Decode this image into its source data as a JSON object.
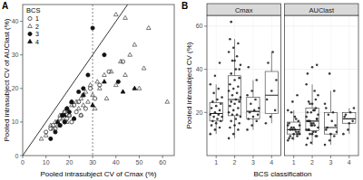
{
  "chart_data": [
    {
      "type": "scatter",
      "title": "A",
      "x_label": "Pooled intrasubject CV of Cmax (%)",
      "y_label": "Pooled intrasubject CV of AUClast (%)",
      "legend_title": "BCS",
      "legend": "top-left",
      "grid": false,
      "xlim": [
        0,
        65
      ],
      "ylim": [
        0,
        45
      ],
      "xticks": [
        0,
        10,
        20,
        30,
        40,
        50,
        60
      ],
      "yticks": [
        0,
        10,
        20,
        30,
        40
      ],
      "reference_lines": {
        "identity": {
          "x": [
            0,
            65
          ],
          "y": [
            0,
            65
          ]
        },
        "vertical": 30
      },
      "series": [
        {
          "name": "1",
          "marker": "open-circle",
          "color": "#333333",
          "x": [
            10,
            12,
            13,
            14,
            15,
            16,
            16,
            17,
            18,
            18,
            19,
            19,
            20,
            21,
            22,
            23,
            24,
            25,
            26,
            27,
            29,
            31,
            33,
            37,
            43
          ],
          "values": [
            7,
            8,
            9,
            8,
            10,
            11,
            9,
            12,
            10,
            13,
            11,
            14,
            12,
            10,
            15,
            13,
            16,
            12,
            18,
            14,
            20,
            17,
            21,
            25,
            28
          ]
        },
        {
          "name": "2",
          "marker": "open-triangle",
          "color": "#555555",
          "x": [
            8,
            10,
            12,
            13,
            14,
            15,
            16,
            17,
            18,
            19,
            19,
            20,
            21,
            22,
            23,
            24,
            25,
            25,
            26,
            27,
            28,
            29,
            30,
            31,
            32,
            33,
            35,
            36,
            38,
            40,
            42,
            44,
            46,
            48,
            50,
            52,
            54,
            44,
            40,
            62
          ],
          "values": [
            5,
            6,
            9,
            8,
            10,
            9,
            12,
            11,
            13,
            10,
            14,
            12,
            15,
            11,
            16,
            14,
            17,
            12,
            15,
            19,
            16,
            21,
            18,
            14,
            22,
            20,
            24,
            17,
            25,
            21,
            28,
            24,
            30,
            33,
            20,
            26,
            38,
            41,
            42,
            16
          ]
        },
        {
          "name": "3",
          "marker": "filled-circle",
          "color": "#111111",
          "x": [
            12,
            14,
            16,
            17,
            18,
            19,
            20,
            21,
            22,
            24,
            26,
            28,
            30,
            35,
            41
          ],
          "values": [
            5,
            7,
            9,
            12,
            10,
            14,
            13,
            16,
            11,
            19,
            20,
            24,
            38,
            30,
            22
          ]
        },
        {
          "name": "4",
          "marker": "filled-triangle",
          "color": "#111111",
          "x": [
            15,
            18,
            21,
            26,
            30,
            35,
            43,
            48
          ],
          "values": [
            10,
            12,
            16,
            18,
            15,
            22,
            19,
            20
          ]
        }
      ]
    },
    {
      "type": "box",
      "title": "B",
      "x_label": "BCS classification",
      "y_label": "Pooled intrasubject CV (%)",
      "categories": [
        "1",
        "2",
        "3",
        "4"
      ],
      "grid": true,
      "ylim": [
        0,
        65
      ],
      "yticks": [
        20,
        40,
        60
      ],
      "facets": [
        {
          "title": "Cmax",
          "boxes": {
            "whisker_low": [
              10,
              8,
              12,
              15
            ],
            "q1": [
              16,
              18.5,
              17,
              19.5
            ],
            "median": [
              19.5,
              26,
              20.5,
              28
            ],
            "q3": [
              24.5,
              37,
              27,
              39
            ],
            "whisker_high": [
              33,
              54,
              35,
              48
            ]
          },
          "points": [
            [
              10,
              12,
              13,
              14,
              15,
              16,
              16,
              17,
              18,
              18,
              19,
              19,
              20,
              21,
              22,
              23,
              24,
              25,
              26,
              27,
              29,
              31,
              33,
              37,
              43
            ],
            [
              8,
              10,
              12,
              13,
              14,
              15,
              16,
              17,
              18,
              19,
              19,
              20,
              21,
              22,
              23,
              24,
              25,
              25,
              26,
              27,
              28,
              29,
              30,
              31,
              32,
              33,
              35,
              36,
              38,
              40,
              42,
              44,
              46,
              48,
              50,
              52,
              54,
              44,
              40,
              62
            ],
            [
              12,
              14,
              16,
              17,
              18,
              19,
              20,
              21,
              22,
              24,
              26,
              28,
              30,
              35,
              41
            ],
            [
              15,
              18,
              21,
              26,
              30,
              35,
              43,
              48
            ]
          ]
        },
        {
          "title": "AUClast",
          "boxes": {
            "whisker_low": [
              7,
              5,
              5,
              10
            ],
            "q1": [
              10,
              11.5,
              10,
              15
            ],
            "median": [
              12,
              16,
              13,
              17
            ],
            "q3": [
              15.5,
              22,
              20,
              20
            ],
            "whisker_high": [
              21,
              33,
              30,
              22
            ]
          },
          "points": [
            [
              7,
              8,
              9,
              8,
              10,
              11,
              9,
              12,
              10,
              13,
              11,
              14,
              12,
              10,
              15,
              13,
              16,
              12,
              18,
              14,
              20,
              17,
              21,
              25,
              28
            ],
            [
              5,
              6,
              9,
              8,
              10,
              9,
              12,
              11,
              13,
              10,
              14,
              12,
              15,
              11,
              16,
              14,
              17,
              12,
              15,
              19,
              16,
              21,
              18,
              14,
              22,
              20,
              24,
              17,
              25,
              21,
              28,
              24,
              30,
              33,
              20,
              26,
              38,
              41,
              42,
              16
            ],
            [
              5,
              7,
              9,
              12,
              10,
              14,
              13,
              16,
              11,
              19,
              20,
              24,
              38,
              30,
              22
            ],
            [
              10,
              12,
              16,
              18,
              15,
              22,
              19,
              20
            ]
          ]
        }
      ]
    }
  ]
}
